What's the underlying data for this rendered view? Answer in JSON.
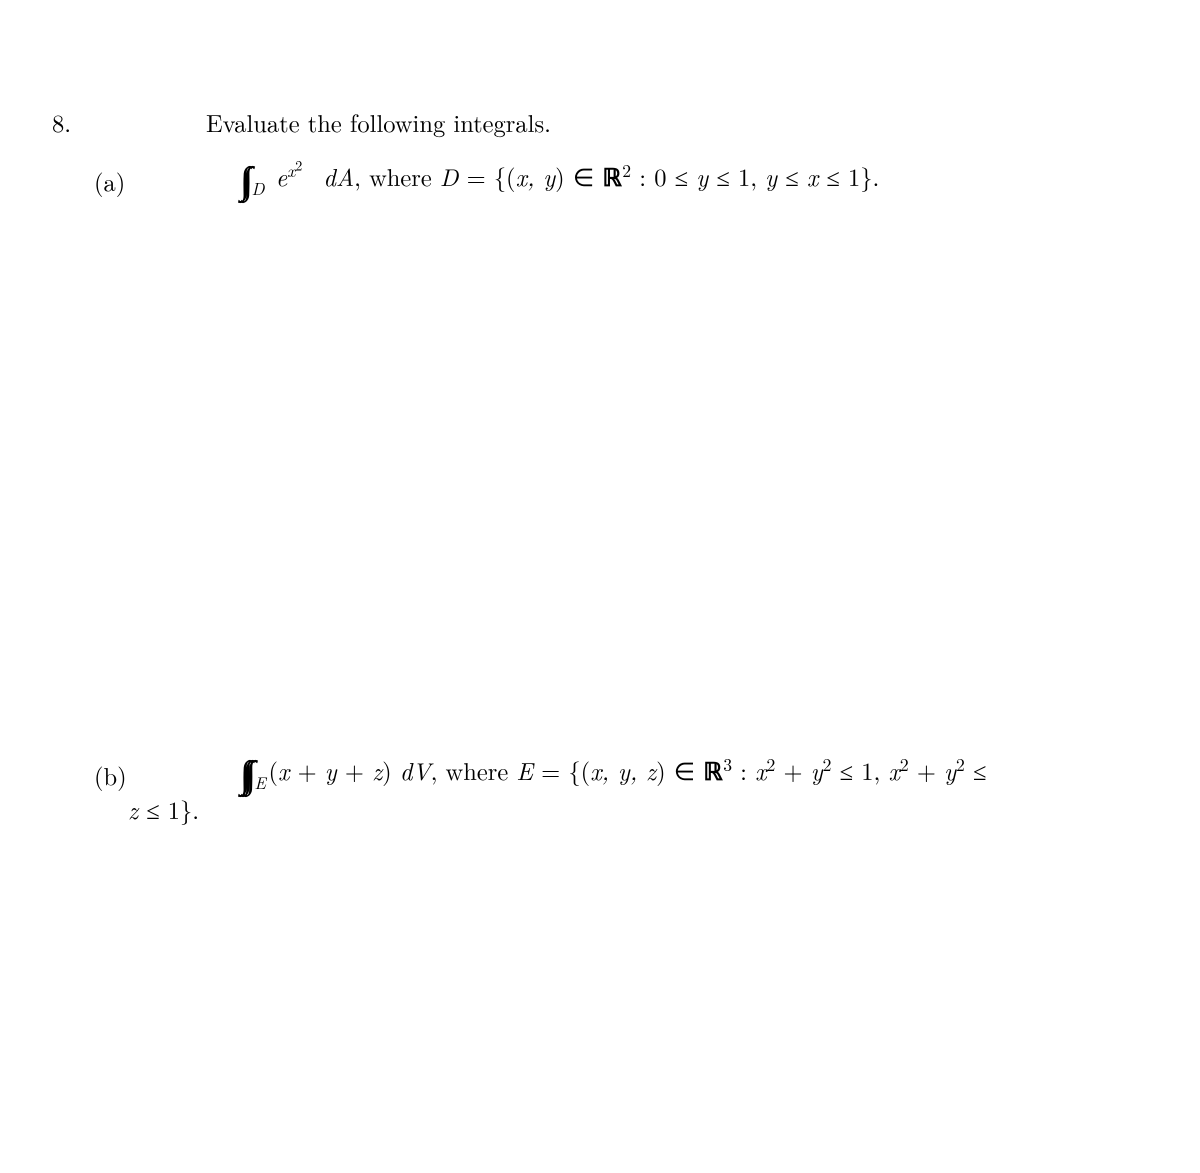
{
  "problem": {
    "number": "8.",
    "statement": "Evaluate the following integrals.",
    "parts": {
      "a": {
        "label": "(a)",
        "integral_sub": "D",
        "integrand_e": "e",
        "integrand_exp_base": "x",
        "integrand_exp_pow": "2",
        "dmeasure": "dA",
        "where": ", where ",
        "domain_name": "D",
        "eq": " = ",
        "set_open": "{(",
        "vars": "x, y",
        "set_close_in": ") ∈ ",
        "space": "ℝ",
        "space_dim": "2",
        "colon": "  :  ",
        "cond1_a": "0 ≤ ",
        "cond1_b": "y",
        "cond1_c": " ≤ 1, ",
        "cond2_a": "y",
        "cond2_b": " ≤ ",
        "cond2_c": "x",
        "cond2_d": " ≤ 1",
        "set_end": "}."
      },
      "b": {
        "label": "(b)",
        "integral_sub": "E",
        "integrand_open": "(",
        "integrand_x": "x",
        "integrand_p1": " + ",
        "integrand_y": "y",
        "integrand_p2": " + ",
        "integrand_z": "z",
        "integrand_close": ") ",
        "dmeasure": "dV",
        "where": ", where ",
        "domain_name": "E",
        "eq": " = ",
        "set_open": "{(",
        "vars": "x, y, z",
        "set_close_in": ") ∈ ",
        "space": "ℝ",
        "space_dim": "3",
        "colon": "  :  ",
        "cond1_a": "x",
        "cond1_ap": "2",
        "cond1_b": " + ",
        "cond1_c": "y",
        "cond1_cp": "2",
        "cond1_d": " ≤ 1, ",
        "cond2_a": "x",
        "cond2_ap": "2",
        "cond2_b": " + ",
        "cond2_c": "y",
        "cond2_cp": "2",
        "cond2_d": " ≤",
        "cont_a": "z",
        "cont_b": " ≤ 1",
        "cont_end": "}."
      }
    }
  }
}
